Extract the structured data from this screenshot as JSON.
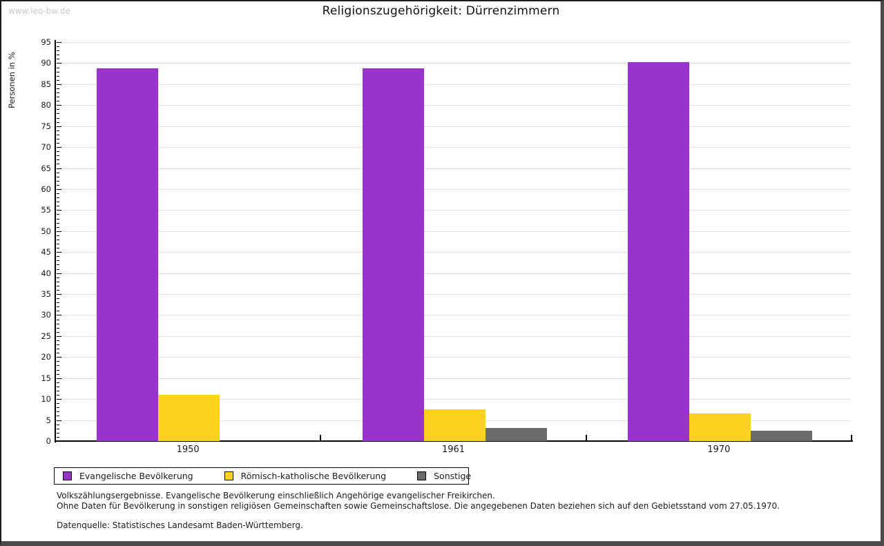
{
  "watermark": "www.leo-bw.de",
  "title": "Religionszugehörigkeit: Dürrenzimmern",
  "chart_data": {
    "type": "bar",
    "title": "Religionszugehörigkeit: Dürrenzimmern",
    "xlabel": "",
    "ylabel": "Personen in %",
    "categories": [
      "1950",
      "1961",
      "1970"
    ],
    "series": [
      {
        "name": "Evangelische Bevölkerung",
        "color": "#9933CC",
        "values": [
          88.7,
          88.8,
          90.2
        ]
      },
      {
        "name": "Römisch-katholische Bevölkerung",
        "color": "#FDD320",
        "values": [
          11.0,
          7.5,
          6.6
        ]
      },
      {
        "name": "Sonstige",
        "color": "#6B6B6B",
        "values": [
          0,
          3.2,
          2.4
        ]
      }
    ],
    "ylim": [
      0,
      95
    ],
    "y_major_step": 5,
    "y_minor_step": 1,
    "grid": true,
    "legend_position": "bottom"
  },
  "footnotes": {
    "line1": "Volkszählungsergebnisse. Evangelische Bevölkerung einschließlich Angehörige evangelischer Freikirchen.",
    "line2": "Ohne Daten für Bevölkerung in sonstigen religiösen Gemeinschaften sowie Gemeinschaftslose. Die angegebenen Daten beziehen sich auf den Gebietsstand vom 27.05.1970.",
    "source": "Datenquelle: Statistisches Landesamt Baden-Württemberg."
  }
}
